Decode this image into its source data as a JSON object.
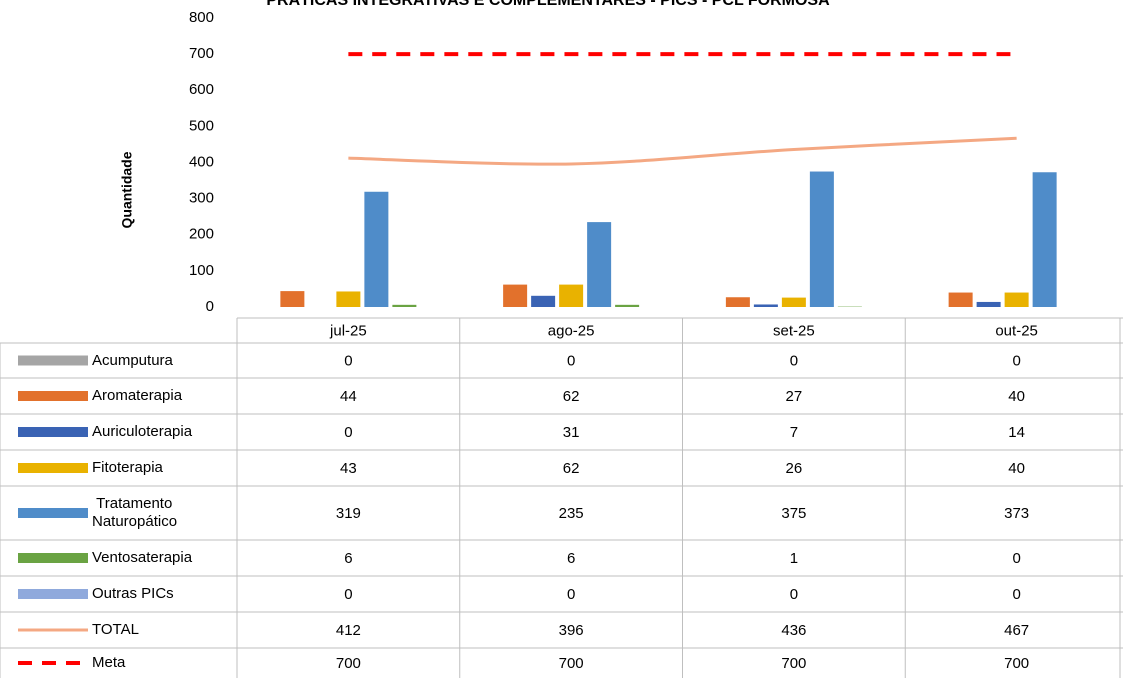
{
  "chart_data": {
    "type": "bar",
    "title": "PRÁTICAS INTEGRATIVAS E COMPLEMENTARES - PICS - PCL FORMOSA",
    "y_label": "Quantidade",
    "categories": [
      "jul-25",
      "ago-25",
      "set-25",
      "out-25"
    ],
    "ylim": [
      0,
      800
    ],
    "yticks": [
      0,
      100,
      200,
      300,
      400,
      500,
      600,
      700,
      800
    ],
    "series": [
      {
        "name": "Acumputura",
        "color": "#a5a5a5",
        "values": [
          0,
          0,
          0,
          0
        ]
      },
      {
        "name": "Aromaterapia",
        "color": "#e2712c",
        "values": [
          44,
          62,
          27,
          40
        ]
      },
      {
        "name": "Auriculoterapia",
        "color": "#3a63b4",
        "values": [
          0,
          31,
          7,
          14
        ]
      },
      {
        "name": "Fitoterapia",
        "color": "#e9b200",
        "values": [
          43,
          62,
          26,
          40
        ]
      },
      {
        "name": " Tratamento Naturopático",
        "color": "#4f8cc9",
        "values": [
          319,
          235,
          375,
          373
        ]
      },
      {
        "name": "Ventosaterapia",
        "color": "#6aa343",
        "values": [
          6,
          6,
          1,
          0
        ]
      },
      {
        "name": "Outras PICs",
        "color": "#8fa9dc",
        "values": [
          0,
          0,
          0,
          0
        ]
      },
      {
        "name": "TOTAL",
        "type": "line",
        "color": "#f4a883",
        "values": [
          412,
          396,
          436,
          467
        ]
      },
      {
        "name": "Meta",
        "type": "line",
        "style": "dashed",
        "color": "#ff0000",
        "values": [
          700,
          700,
          700,
          700
        ]
      }
    ]
  }
}
